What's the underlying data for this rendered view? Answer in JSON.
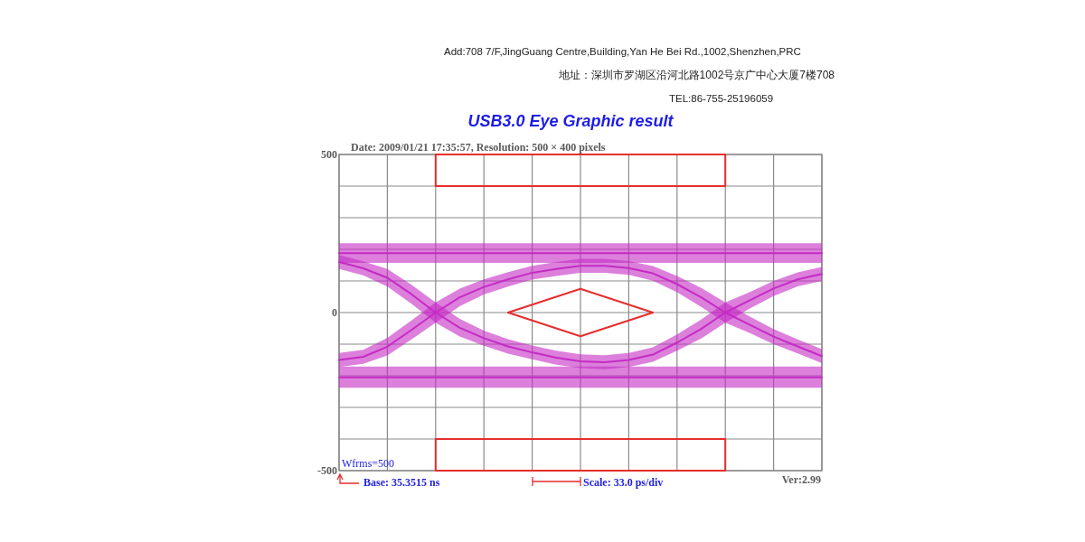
{
  "chart_data": {
    "type": "line",
    "title": "USB3.0 Eye Graphic result",
    "subtitle": "Date: 2009/01/21 17:35:57, Resolution: 500 × 400 pixels",
    "categories": [
      null,
      null,
      null,
      null,
      null,
      null,
      null,
      null,
      null,
      null,
      null,
      null,
      null,
      null,
      null,
      null,
      null,
      null,
      null,
      null,
      null
    ],
    "series": [
      {
        "color": "#c42bc4",
        "values": [
          188,
          188,
          188,
          188,
          188,
          188,
          188,
          188,
          188,
          188,
          188,
          188,
          188,
          188,
          188,
          188,
          188,
          188,
          188,
          188,
          188
        ],
        "lower": [
          157,
          157,
          157,
          157,
          157,
          157,
          157,
          157,
          157,
          157,
          157,
          157,
          157,
          157,
          157,
          157,
          157,
          157,
          157,
          157,
          157
        ],
        "upper": [
          219,
          219,
          219,
          219,
          219,
          219,
          219,
          219,
          219,
          219,
          219,
          219,
          219,
          219,
          219,
          219,
          219,
          219,
          219,
          219,
          219
        ]
      },
      {
        "color": "#c42bc4",
        "values": [
          -205,
          -205,
          -205,
          -205,
          -205,
          -205,
          -205,
          -205,
          -205,
          -205,
          -205,
          -205,
          -205,
          -205,
          -205,
          -205,
          -205,
          -205,
          -205,
          -205,
          -205
        ],
        "lower": [
          -238,
          -238,
          -238,
          -238,
          -238,
          -238,
          -238,
          -238,
          -238,
          -238,
          -238,
          -238,
          -238,
          -238,
          -238,
          -238,
          -238,
          -238,
          -238,
          -238,
          -238
        ],
        "upper": [
          -171,
          -171,
          -171,
          -171,
          -171,
          -171,
          -171,
          -171,
          -171,
          -171,
          -171,
          -171,
          -171,
          -171,
          -171,
          -171,
          -171,
          -171,
          -171,
          -171,
          -171
        ]
      },
      {
        "color": "#c42bc4",
        "values": [
          -150,
          -140,
          -108,
          -55,
          0,
          48,
          81,
          105,
          126,
          138,
          148,
          148,
          141,
          124,
          90,
          48,
          0,
          -38,
          -76,
          -107,
          -138
        ],
        "lower": [
          -172,
          -162,
          -136,
          -85,
          -32,
          20,
          57,
          82,
          104,
          116,
          126,
          126,
          119,
          101,
          64,
          18,
          -32,
          -64,
          -100,
          -129,
          -160
        ],
        "upper": [
          -128,
          -118,
          -80,
          -25,
          32,
          76,
          105,
          128,
          148,
          160,
          170,
          170,
          163,
          147,
          116,
          78,
          32,
          -12,
          -52,
          -85,
          -116
        ]
      },
      {
        "color": "#c42bc4",
        "values": [
          160,
          140,
          110,
          58,
          0,
          -48,
          -81,
          -107,
          -126,
          -143,
          -154,
          -157,
          -150,
          -133,
          -95,
          -52,
          0,
          38,
          76,
          105,
          122
        ],
        "lower": [
          138,
          118,
          82,
          28,
          -32,
          -76,
          -105,
          -130,
          -148,
          -165,
          -176,
          -179,
          -172,
          -156,
          -121,
          -82,
          -32,
          12,
          52,
          83,
          100
        ],
        "upper": [
          182,
          162,
          138,
          88,
          32,
          -20,
          -57,
          -84,
          -104,
          -121,
          -132,
          -135,
          -128,
          -110,
          -69,
          -22,
          32,
          64,
          100,
          127,
          144
        ]
      },
      {
        "color": "#e62e2e",
        "values": [
          null,
          null,
          null,
          null,
          400,
          400,
          400,
          400,
          400,
          400,
          400,
          400,
          400,
          400,
          400,
          400,
          400,
          null,
          null,
          null,
          null
        ],
        "errors": [
          null,
          null,
          null,
          null,
          [
            400,
            500
          ],
          null,
          null,
          null,
          null,
          null,
          null,
          null,
          null,
          null,
          null,
          null,
          [
            400,
            500
          ],
          null,
          null,
          null,
          null
        ]
      },
      {
        "color": "#e62e2e",
        "values": [
          null,
          null,
          null,
          null,
          500,
          500,
          500,
          500,
          500,
          500,
          500,
          500,
          500,
          500,
          500,
          500,
          500,
          null,
          null,
          null,
          null
        ]
      },
      {
        "color": "#e62e2e",
        "values": [
          null,
          null,
          null,
          null,
          -400,
          -400,
          -400,
          -400,
          -400,
          -400,
          -400,
          -400,
          -400,
          -400,
          -400,
          -400,
          -400,
          null,
          null,
          null,
          null
        ],
        "errors": [
          null,
          null,
          null,
          null,
          [
            -500,
            -400
          ],
          null,
          null,
          null,
          null,
          null,
          null,
          null,
          null,
          null,
          null,
          null,
          [
            -500,
            -400
          ],
          null,
          null,
          null,
          null
        ]
      },
      {
        "color": "#e62e2e",
        "values": [
          null,
          null,
          null,
          null,
          -500,
          -500,
          -500,
          -500,
          -500,
          -500,
          -500,
          -500,
          -500,
          -500,
          -500,
          -500,
          -500,
          null,
          null,
          null,
          null
        ]
      },
      {
        "color": "#e62e2e",
        "values": [
          null,
          null,
          null,
          null,
          null,
          null,
          null,
          0,
          25,
          50,
          75,
          50,
          25,
          0,
          null,
          null,
          null,
          null,
          null,
          null,
          null
        ]
      },
      {
        "color": "#e62e2e",
        "values": [
          null,
          null,
          null,
          null,
          null,
          null,
          null,
          0,
          -25,
          -50,
          -75,
          -50,
          -25,
          0,
          null,
          null,
          null,
          null,
          null,
          null,
          null
        ]
      }
    ],
    "ylim": [
      -500,
      500
    ],
    "yticks": [
      -500,
      {
        "value": -400,
        "label": null
      },
      {
        "value": -300,
        "label": null
      },
      {
        "value": -200,
        "label": null
      },
      {
        "value": -100,
        "label": null
      },
      0,
      {
        "value": 100,
        "label": null
      },
      {
        "value": 200,
        "label": null
      },
      {
        "value": 300,
        "label": null
      },
      {
        "value": 400,
        "label": null
      },
      500
    ],
    "grid": true,
    "tick_labels": "y",
    "annotations": [
      "Add:708 7/F,JingGuang Centre,Building,Yan He Bei Rd.,1002,Shenzhen,PRC",
      "地址：深圳市罗湖区沿河北路1002号京广中心大厦7楼708",
      "TEL:86-755-25196059",
      "Wfrms=500",
      "Base: 35.3515 ns",
      "Scale: 33.0 ps/div",
      "Ver:2.99"
    ]
  }
}
